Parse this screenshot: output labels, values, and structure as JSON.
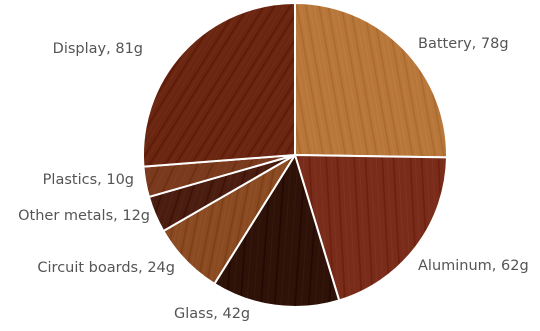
{
  "chart_data": {
    "type": "pie",
    "title": "",
    "slices": [
      {
        "label": "Battery",
        "value": 78,
        "unit": "g",
        "color": "#b8773a"
      },
      {
        "label": "Aluminum",
        "value": 62,
        "unit": "g",
        "color": "#7a2c1a"
      },
      {
        "label": "Glass",
        "value": 42,
        "unit": "g",
        "color": "#2e1208"
      },
      {
        "label": "Circuit boards",
        "value": 24,
        "unit": "g",
        "color": "#8a4a22"
      },
      {
        "label": "Other metals",
        "value": 12,
        "unit": "g",
        "color": "#4a1d10"
      },
      {
        "label": "Plastics",
        "value": 10,
        "unit": "g",
        "color": "#7a3a1e"
      },
      {
        "label": "Display",
        "value": 81,
        "unit": "g",
        "color": "#6a2610"
      }
    ],
    "start_angle": "12 o'clock",
    "direction": "clockwise",
    "label_color": "#555555",
    "separator_color": "#ffffff"
  }
}
